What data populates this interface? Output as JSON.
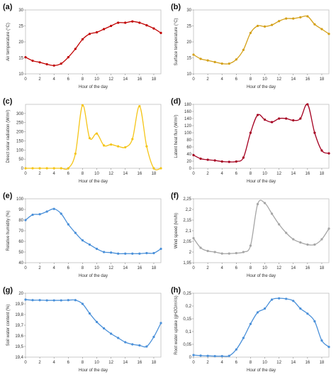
{
  "chart_data": [
    {
      "panel_label": "(a)",
      "type": "line",
      "xlabel": "Hour of the day",
      "ylabel": "Air temperature (°C)",
      "color": "#c00000",
      "xlim": [
        0,
        19
      ],
      "ylim": [
        10,
        30
      ],
      "xticks": [
        0,
        2,
        4,
        6,
        8,
        10,
        12,
        14,
        16,
        18
      ],
      "xtick_labels": [
        "0",
        "2",
        "4",
        "6",
        "8",
        "10",
        "12",
        "14",
        "16",
        "18"
      ],
      "yticks": [
        10,
        15,
        20,
        25,
        30
      ],
      "ytick_labels": [
        "10",
        "15",
        "20",
        "25",
        "30"
      ],
      "x": [
        0,
        1,
        2,
        3,
        4,
        5,
        6,
        7,
        8,
        9,
        10,
        11,
        12,
        13,
        14,
        15,
        16,
        17,
        18,
        19
      ],
      "values": [
        15.2,
        14.1,
        13.6,
        13.0,
        12.6,
        13.2,
        15.2,
        17.8,
        20.8,
        22.5,
        23.0,
        24.0,
        25.0,
        26.0,
        26.0,
        26.4,
        26.0,
        25.2,
        24.2,
        22.8
      ]
    },
    {
      "panel_label": "(b)",
      "type": "line",
      "xlabel": "Hour of the day",
      "ylabel": "Surface temperature (°C)",
      "color": "#d4a017",
      "xlim": [
        0,
        19
      ],
      "ylim": [
        10,
        30
      ],
      "xticks": [
        0,
        2,
        4,
        6,
        8,
        10,
        12,
        14,
        16,
        18
      ],
      "xtick_labels": [
        "0",
        "2",
        "4",
        "6",
        "8",
        "10",
        "12",
        "14",
        "16",
        "18"
      ],
      "yticks": [
        10,
        15,
        20,
        25,
        30
      ],
      "ytick_labels": [
        "10",
        "15",
        "20",
        "25",
        "30"
      ],
      "x": [
        0,
        1,
        2,
        3,
        4,
        5,
        6,
        7,
        8,
        9,
        10,
        11,
        12,
        13,
        14,
        15,
        16,
        17,
        18,
        19
      ],
      "values": [
        16.0,
        14.7,
        14.2,
        13.7,
        13.2,
        13.2,
        14.5,
        17.5,
        22.8,
        25.0,
        24.8,
        25.3,
        26.5,
        27.3,
        27.3,
        27.7,
        28.0,
        25.5,
        24.0,
        22.5
      ]
    },
    {
      "panel_label": "(c)",
      "type": "line",
      "xlabel": "Hour of the day",
      "ylabel": "Direct solar radiation (W/m²)",
      "color": "#f5c518",
      "xlim": [
        0,
        19
      ],
      "ylim": [
        0,
        350
      ],
      "xticks": [
        0,
        2,
        4,
        6,
        8,
        10,
        12,
        14,
        16,
        18
      ],
      "xtick_labels": [
        "0",
        "2",
        "4",
        "6",
        "8",
        "10",
        "12",
        "14",
        "16",
        "18"
      ],
      "yticks": [
        0,
        50,
        100,
        150,
        200,
        250,
        300
      ],
      "ytick_labels": [
        "0",
        "50",
        "100",
        "150",
        "200",
        "250",
        "300"
      ],
      "x": [
        0,
        1,
        2,
        3,
        4,
        5,
        6,
        7,
        8,
        9,
        10,
        11,
        12,
        13,
        14,
        15,
        16,
        17,
        18,
        19
      ],
      "values": [
        0,
        0,
        0,
        0,
        0,
        0,
        0,
        80,
        345,
        165,
        190,
        125,
        130,
        120,
        115,
        160,
        340,
        120,
        0,
        0
      ]
    },
    {
      "panel_label": "(d)",
      "type": "line",
      "xlabel": "Hour of the day",
      "ylabel": "Latent heat flux (W/m²)",
      "color": "#a50021",
      "xlim": [
        0,
        19
      ],
      "ylim": [
        0,
        180
      ],
      "xticks": [
        0,
        2,
        4,
        6,
        8,
        10,
        12,
        14,
        16,
        18
      ],
      "xtick_labels": [
        "0",
        "2",
        "4",
        "6",
        "8",
        "10",
        "12",
        "14",
        "16",
        "18"
      ],
      "yticks": [
        0,
        20,
        40,
        60,
        80,
        100,
        120,
        140,
        160,
        180
      ],
      "ytick_labels": [
        "0",
        "20",
        "40",
        "60",
        "80",
        "100",
        "120",
        "140",
        "160",
        "180"
      ],
      "x": [
        0,
        1,
        2,
        3,
        4,
        5,
        6,
        7,
        8,
        9,
        10,
        11,
        12,
        13,
        14,
        15,
        16,
        17,
        18,
        19
      ],
      "values": [
        37,
        27,
        24,
        22,
        19,
        18,
        19,
        30,
        100,
        150,
        137,
        130,
        140,
        140,
        135,
        140,
        180,
        100,
        50,
        42
      ]
    },
    {
      "panel_label": "(e)",
      "type": "line",
      "xlabel": "Hour of the day",
      "ylabel": "Relative humidity (%)",
      "color": "#4a90d9",
      "xlim": [
        0,
        19
      ],
      "ylim": [
        40,
        100
      ],
      "xticks": [
        0,
        2,
        4,
        6,
        8,
        10,
        12,
        14,
        16,
        18
      ],
      "xtick_labels": [
        "0",
        "2",
        "4",
        "6",
        "8",
        "10",
        "12",
        "14",
        "16",
        "18"
      ],
      "yticks": [
        40,
        50,
        60,
        70,
        80,
        90,
        100
      ],
      "ytick_labels": [
        "40",
        "50",
        "60",
        "70",
        "80",
        "90",
        "100"
      ],
      "x": [
        0,
        1,
        2,
        3,
        4,
        5,
        6,
        7,
        8,
        9,
        10,
        11,
        12,
        13,
        14,
        15,
        16,
        17,
        18,
        19
      ],
      "values": [
        80,
        85,
        85.5,
        88,
        90.5,
        86,
        76,
        68,
        61,
        57,
        53,
        50,
        49.5,
        48.5,
        48.5,
        48.5,
        48.5,
        49,
        49,
        53
      ]
    },
    {
      "panel_label": "(f)",
      "type": "line",
      "xlabel": "Hour of the day",
      "ylabel": "Wind speed (km/h)",
      "color": "#a6a6a6",
      "xlim": [
        0,
        19
      ],
      "ylim": [
        1.95,
        2.25
      ],
      "xticks": [
        0,
        2,
        4,
        6,
        8,
        10,
        12,
        14,
        16,
        18
      ],
      "xtick_labels": [
        "0",
        "2",
        "4",
        "6",
        "8",
        "10",
        "12",
        "14",
        "16",
        "18"
      ],
      "yticks": [
        1.95,
        2.0,
        2.05,
        2.1,
        2.15,
        2.2,
        2.25
      ],
      "ytick_labels": [
        "1,95",
        "2",
        "2,05",
        "2,1",
        "2,15",
        "2,2",
        "2,25"
      ],
      "x": [
        0,
        1,
        2,
        3,
        4,
        5,
        6,
        7,
        8,
        9,
        10,
        11,
        12,
        13,
        14,
        15,
        16,
        17,
        18,
        19
      ],
      "values": [
        2.065,
        2.02,
        2.005,
        2.0,
        1.993,
        1.993,
        1.995,
        2.0,
        2.03,
        2.225,
        2.23,
        2.18,
        2.13,
        2.09,
        2.06,
        2.045,
        2.035,
        2.035,
        2.06,
        2.11
      ]
    },
    {
      "panel_label": "(g)",
      "type": "line",
      "xlabel": "Hour of the day",
      "ylabel": "Soil water content (%)",
      "color": "#4a90d9",
      "xlim": [
        0,
        19
      ],
      "ylim": [
        19.4,
        20
      ],
      "xticks": [
        0,
        2,
        4,
        6,
        8,
        10,
        12,
        14,
        16,
        18
      ],
      "xtick_labels": [
        "0",
        "2",
        "4",
        "6",
        "8",
        "10",
        "12",
        "14",
        "16",
        "18"
      ],
      "yticks": [
        19.4,
        19.5,
        19.6,
        19.7,
        19.8,
        19.9,
        20.0
      ],
      "ytick_labels": [
        "19,4",
        "19,5",
        "19,6",
        "19,7",
        "19,8",
        "19,9",
        "20"
      ],
      "x": [
        0,
        1,
        2,
        3,
        4,
        5,
        6,
        7,
        8,
        9,
        10,
        11,
        12,
        13,
        14,
        15,
        16,
        17,
        18,
        19
      ],
      "values": [
        19.94,
        19.935,
        19.935,
        19.933,
        19.933,
        19.933,
        19.935,
        19.935,
        19.9,
        19.81,
        19.73,
        19.67,
        19.62,
        19.58,
        19.54,
        19.52,
        19.51,
        19.5,
        19.59,
        19.72
      ]
    },
    {
      "panel_label": "(h)",
      "type": "line",
      "xlabel": "Hour of the day",
      "ylabel": "Root water uptake (gH2O/m²/s)",
      "color": "#4a90d9",
      "xlim": [
        0,
        19
      ],
      "ylim": [
        0,
        0.25
      ],
      "xticks": [
        0,
        2,
        4,
        6,
        8,
        10,
        12,
        14,
        16,
        18
      ],
      "xtick_labels": [
        "0",
        "2",
        "4",
        "6",
        "8",
        "10",
        "12",
        "14",
        "16",
        "18"
      ],
      "yticks": [
        0,
        0.05,
        0.1,
        0.15,
        0.2,
        0.25
      ],
      "ytick_labels": [
        "0",
        "0,05",
        "0,1",
        "0,15",
        "0,2",
        "0,25"
      ],
      "x": [
        0,
        1,
        2,
        3,
        4,
        5,
        6,
        7,
        8,
        9,
        10,
        11,
        12,
        13,
        14,
        15,
        16,
        17,
        18,
        19
      ],
      "values": [
        0.008,
        0.006,
        0.005,
        0.004,
        0.004,
        0.005,
        0.03,
        0.075,
        0.13,
        0.175,
        0.19,
        0.225,
        0.23,
        0.228,
        0.22,
        0.19,
        0.17,
        0.14,
        0.065,
        0.04
      ]
    }
  ]
}
